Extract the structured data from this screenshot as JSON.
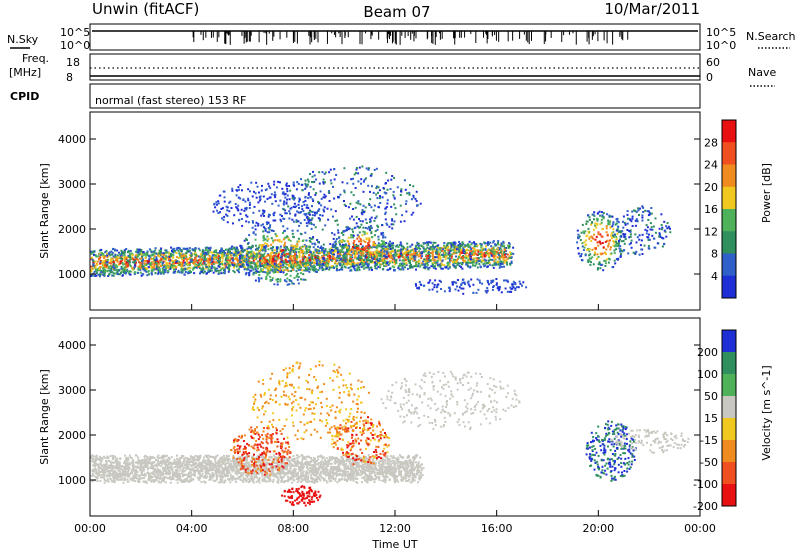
{
  "header": {
    "station": "Unwin (fitACF)",
    "beam": "Beam 07",
    "date": "10/Mar/2011"
  },
  "noise_panel": {
    "left_label": "N.Sky",
    "left_ticks": [
      "10^5",
      "10^0"
    ],
    "right_label": "N.Search",
    "right_ticks": [
      "10^5",
      "10^0"
    ]
  },
  "freq_panel": {
    "left_label_1": "Freq.",
    "left_label_2": "[MHz]",
    "left_ticks": [
      "18",
      "8"
    ],
    "right_label": "Nave",
    "right_ticks": [
      "60",
      "0"
    ]
  },
  "cpid_panel": {
    "label": "CPID",
    "text": "normal (fast stereo) 153 RF"
  },
  "colors": {
    "power_scale": [
      "#1f2fd6",
      "#2f5fc8",
      "#2f8f5f",
      "#4fb25a",
      "#f0c81f",
      "#f08c1f",
      "#f0501f",
      "#e81010"
    ],
    "velocity_scale": [
      "#e81010",
      "#f0501f",
      "#f08c1f",
      "#f0c81f",
      "#c8c8c0",
      "#4fb25a",
      "#2f8f5f",
      "#1f2fd6"
    ]
  },
  "chart_data": [
    {
      "type": "heatmap",
      "title": "",
      "ylabel": "Slant Range [km]",
      "xlabel": "",
      "ylim": [
        200,
        4600
      ],
      "xlim": [
        0,
        24
      ],
      "yticks": [
        "1000",
        "2000",
        "3000",
        "4000"
      ],
      "colorbar": {
        "label": "Power [dB]",
        "ticks": [
          "4",
          "8",
          "12",
          "16",
          "20",
          "24",
          "28"
        ]
      }
    },
    {
      "type": "heatmap",
      "title": "",
      "ylabel": "Slant Range [km]",
      "xlabel": "Time UT",
      "ylim": [
        200,
        4600
      ],
      "xlim": [
        0,
        24
      ],
      "yticks": [
        "1000",
        "2000",
        "3000",
        "4000"
      ],
      "xticks": [
        "00:00",
        "04:00",
        "08:00",
        "12:00",
        "16:00",
        "20:00",
        "00:00"
      ],
      "colorbar": {
        "label": "Velocity [m s^-1]",
        "ticks": [
          "200",
          "100",
          "50",
          "15",
          "-15",
          "-50",
          "-100",
          "-200"
        ]
      }
    }
  ]
}
